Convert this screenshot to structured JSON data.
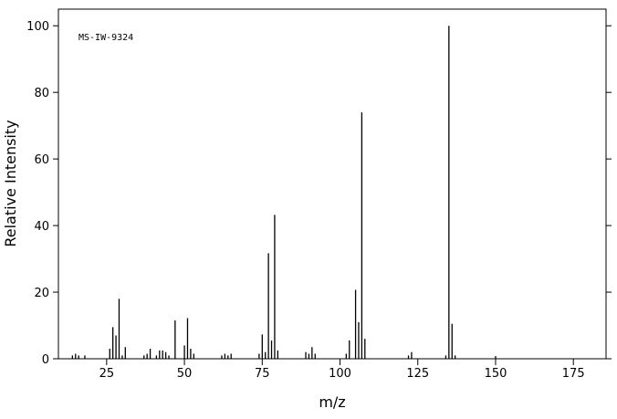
{
  "chart_data": {
    "type": "spectrum",
    "annotation": "MS-IW-9324",
    "x_label": "m/z",
    "y_label": "Relative Intensity",
    "x": [
      14,
      15,
      16,
      18,
      26,
      27,
      28,
      29,
      30,
      31,
      37,
      38,
      39,
      41,
      42,
      43,
      44,
      45,
      47,
      50,
      51,
      52,
      53,
      62,
      63,
      64,
      65,
      74,
      75,
      76,
      77,
      78,
      79,
      80,
      89,
      90,
      91,
      92,
      102,
      103,
      105,
      106,
      107,
      108,
      122,
      123,
      134,
      135,
      136,
      137,
      150
    ],
    "values": [
      1,
      1.5,
      1,
      1,
      3,
      9.5,
      7,
      18,
      1,
      3.5,
      1,
      1.5,
      3,
      1,
      2.5,
      2.5,
      2,
      1,
      11.5,
      4,
      12.2,
      3,
      1.5,
      1,
      1.5,
      1,
      1.5,
      1.5,
      7.3,
      2,
      31.7,
      5.5,
      43.2,
      2.5,
      2,
      1.5,
      3.5,
      1.5,
      1.5,
      5.5,
      20.7,
      11,
      74,
      6,
      1,
      2,
      1,
      100,
      10.5,
      1,
      0.8
    ],
    "color": "#000000",
    "xlim": [
      9.5,
      185.5
    ],
    "xticks": [
      25,
      50,
      75,
      100,
      125,
      150,
      175
    ],
    "ylim": [
      0,
      105
    ],
    "yticks": [
      0,
      20,
      40,
      60,
      80,
      100
    ]
  }
}
